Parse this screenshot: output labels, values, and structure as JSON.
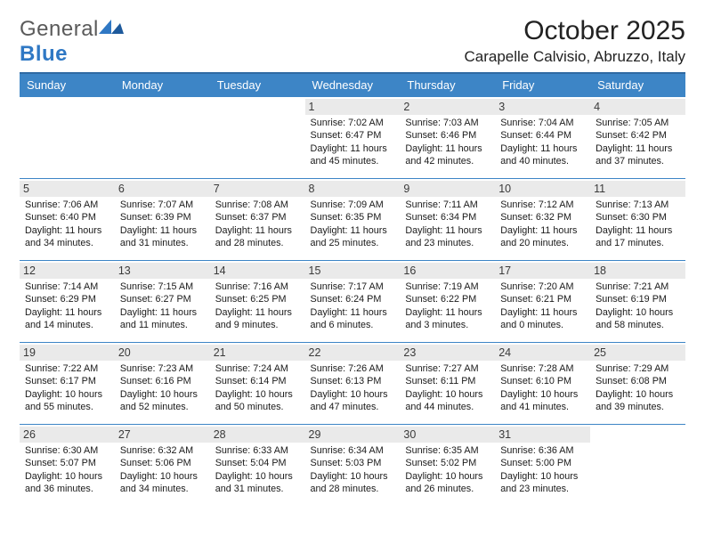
{
  "brand": {
    "part1": "General",
    "part2": "Blue"
  },
  "title": "October 2025",
  "location": "Carapelle Calvisio, Abruzzo, Italy",
  "colors": {
    "header_bg": "#3d85c6",
    "header_border": "#2f6aa3",
    "row_border": "#3d85c6",
    "daynum_bg": "#eaeaea",
    "text": "#1a1a1a",
    "brand_gray": "#5a5a5a",
    "brand_blue": "#2f78c4",
    "background": "#ffffff"
  },
  "typography": {
    "cell_fontsize": 10.8,
    "header_fontsize": 13,
    "title_fontsize": 30,
    "location_fontsize": 17
  },
  "day_headers": [
    "Sunday",
    "Monday",
    "Tuesday",
    "Wednesday",
    "Thursday",
    "Friday",
    "Saturday"
  ],
  "weeks": [
    [
      null,
      null,
      null,
      {
        "n": "1",
        "sr": "7:02 AM",
        "ss": "6:47 PM",
        "dl": "11 hours and 45 minutes."
      },
      {
        "n": "2",
        "sr": "7:03 AM",
        "ss": "6:46 PM",
        "dl": "11 hours and 42 minutes."
      },
      {
        "n": "3",
        "sr": "7:04 AM",
        "ss": "6:44 PM",
        "dl": "11 hours and 40 minutes."
      },
      {
        "n": "4",
        "sr": "7:05 AM",
        "ss": "6:42 PM",
        "dl": "11 hours and 37 minutes."
      }
    ],
    [
      {
        "n": "5",
        "sr": "7:06 AM",
        "ss": "6:40 PM",
        "dl": "11 hours and 34 minutes."
      },
      {
        "n": "6",
        "sr": "7:07 AM",
        "ss": "6:39 PM",
        "dl": "11 hours and 31 minutes."
      },
      {
        "n": "7",
        "sr": "7:08 AM",
        "ss": "6:37 PM",
        "dl": "11 hours and 28 minutes."
      },
      {
        "n": "8",
        "sr": "7:09 AM",
        "ss": "6:35 PM",
        "dl": "11 hours and 25 minutes."
      },
      {
        "n": "9",
        "sr": "7:11 AM",
        "ss": "6:34 PM",
        "dl": "11 hours and 23 minutes."
      },
      {
        "n": "10",
        "sr": "7:12 AM",
        "ss": "6:32 PM",
        "dl": "11 hours and 20 minutes."
      },
      {
        "n": "11",
        "sr": "7:13 AM",
        "ss": "6:30 PM",
        "dl": "11 hours and 17 minutes."
      }
    ],
    [
      {
        "n": "12",
        "sr": "7:14 AM",
        "ss": "6:29 PM",
        "dl": "11 hours and 14 minutes."
      },
      {
        "n": "13",
        "sr": "7:15 AM",
        "ss": "6:27 PM",
        "dl": "11 hours and 11 minutes."
      },
      {
        "n": "14",
        "sr": "7:16 AM",
        "ss": "6:25 PM",
        "dl": "11 hours and 9 minutes."
      },
      {
        "n": "15",
        "sr": "7:17 AM",
        "ss": "6:24 PM",
        "dl": "11 hours and 6 minutes."
      },
      {
        "n": "16",
        "sr": "7:19 AM",
        "ss": "6:22 PM",
        "dl": "11 hours and 3 minutes."
      },
      {
        "n": "17",
        "sr": "7:20 AM",
        "ss": "6:21 PM",
        "dl": "11 hours and 0 minutes."
      },
      {
        "n": "18",
        "sr": "7:21 AM",
        "ss": "6:19 PM",
        "dl": "10 hours and 58 minutes."
      }
    ],
    [
      {
        "n": "19",
        "sr": "7:22 AM",
        "ss": "6:17 PM",
        "dl": "10 hours and 55 minutes."
      },
      {
        "n": "20",
        "sr": "7:23 AM",
        "ss": "6:16 PM",
        "dl": "10 hours and 52 minutes."
      },
      {
        "n": "21",
        "sr": "7:24 AM",
        "ss": "6:14 PM",
        "dl": "10 hours and 50 minutes."
      },
      {
        "n": "22",
        "sr": "7:26 AM",
        "ss": "6:13 PM",
        "dl": "10 hours and 47 minutes."
      },
      {
        "n": "23",
        "sr": "7:27 AM",
        "ss": "6:11 PM",
        "dl": "10 hours and 44 minutes."
      },
      {
        "n": "24",
        "sr": "7:28 AM",
        "ss": "6:10 PM",
        "dl": "10 hours and 41 minutes."
      },
      {
        "n": "25",
        "sr": "7:29 AM",
        "ss": "6:08 PM",
        "dl": "10 hours and 39 minutes."
      }
    ],
    [
      {
        "n": "26",
        "sr": "6:30 AM",
        "ss": "5:07 PM",
        "dl": "10 hours and 36 minutes."
      },
      {
        "n": "27",
        "sr": "6:32 AM",
        "ss": "5:06 PM",
        "dl": "10 hours and 34 minutes."
      },
      {
        "n": "28",
        "sr": "6:33 AM",
        "ss": "5:04 PM",
        "dl": "10 hours and 31 minutes."
      },
      {
        "n": "29",
        "sr": "6:34 AM",
        "ss": "5:03 PM",
        "dl": "10 hours and 28 minutes."
      },
      {
        "n": "30",
        "sr": "6:35 AM",
        "ss": "5:02 PM",
        "dl": "10 hours and 26 minutes."
      },
      {
        "n": "31",
        "sr": "6:36 AM",
        "ss": "5:00 PM",
        "dl": "10 hours and 23 minutes."
      },
      null
    ]
  ],
  "labels": {
    "sunrise": "Sunrise:",
    "sunset": "Sunset:",
    "daylight": "Daylight:"
  }
}
